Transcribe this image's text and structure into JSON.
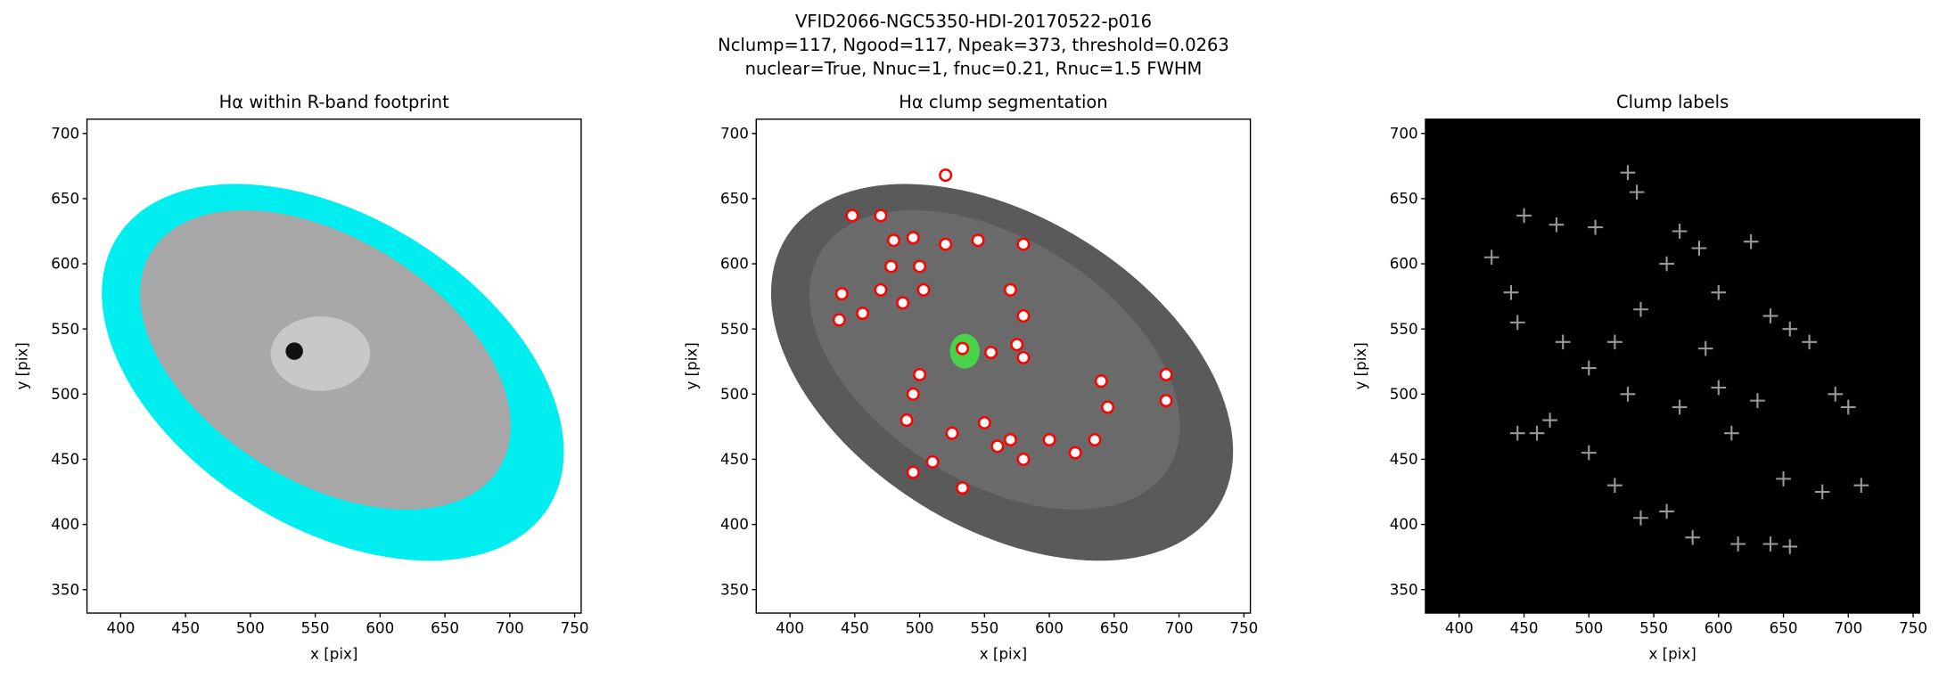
{
  "figure_title": [
    "VFID2066-NGC5350-HDI-20170522-p016",
    "Nclump=117, Ngood=117, Npeak=373, threshold=0.0263",
    "nuclear=True, Nnuc=1, fnuc=0.21, Rnuc=1.5 FWHM"
  ],
  "chart_data": [
    {
      "type": "image",
      "title": "Hα within R-band footprint",
      "xlabel": "x [pix]",
      "ylabel": "y [pix]",
      "xlim": [
        374,
        755
      ],
      "ylim": [
        332,
        711
      ],
      "xticks": [
        400,
        450,
        500,
        550,
        600,
        650,
        700,
        750
      ],
      "yticks": [
        350,
        400,
        450,
        500,
        550,
        600,
        650,
        700
      ]
    },
    {
      "type": "circles",
      "title": "Hα clump segmentation",
      "xlabel": "x [pix]",
      "ylabel": "y [pix]",
      "xlim": [
        374,
        755
      ],
      "ylim": [
        332,
        711
      ],
      "xticks": [
        400,
        450,
        500,
        550,
        600,
        650,
        700,
        750
      ],
      "yticks": [
        350,
        400,
        450,
        500,
        550,
        600,
        650,
        700
      ],
      "x": [
        533,
        555,
        520,
        448,
        470,
        480,
        495,
        478,
        500,
        520,
        545,
        580,
        503,
        470,
        440,
        438,
        456,
        487,
        570,
        580,
        575,
        580,
        500,
        495,
        490,
        525,
        550,
        570,
        580,
        600,
        620,
        635,
        645,
        690,
        640,
        690,
        533,
        510,
        495,
        560
      ],
      "y": [
        535,
        532,
        668,
        637,
        637,
        618,
        620,
        598,
        598,
        615,
        618,
        615,
        580,
        580,
        577,
        557,
        562,
        570,
        580,
        560,
        538,
        528,
        515,
        500,
        480,
        470,
        478,
        465,
        450,
        465,
        455,
        465,
        490,
        495,
        510,
        515,
        428,
        448,
        440,
        460
      ]
    },
    {
      "type": "crosses",
      "title": "Clump labels",
      "xlabel": "x [pix]",
      "ylabel": "y [pix]",
      "xlim": [
        374,
        755
      ],
      "ylim": [
        332,
        711
      ],
      "xticks": [
        400,
        450,
        500,
        550,
        600,
        650,
        700,
        750
      ],
      "yticks": [
        350,
        400,
        450,
        500,
        550,
        600,
        650,
        700
      ],
      "x": [
        425,
        440,
        445,
        450,
        475,
        505,
        530,
        537,
        585,
        625,
        570,
        560,
        600,
        540,
        590,
        640,
        655,
        670,
        690,
        700,
        710,
        680,
        650,
        640,
        655,
        615,
        580,
        560,
        540,
        520,
        500,
        470,
        460,
        445,
        610,
        630,
        600,
        570,
        530,
        500,
        480,
        520
      ],
      "y": [
        605,
        578,
        555,
        637,
        630,
        628,
        670,
        655,
        612,
        617,
        625,
        600,
        578,
        565,
        535,
        560,
        550,
        540,
        500,
        490,
        430,
        425,
        435,
        385,
        383,
        385,
        390,
        410,
        405,
        430,
        455,
        480,
        470,
        470,
        470,
        495,
        505,
        490,
        500,
        520,
        540,
        540
      ]
    }
  ]
}
